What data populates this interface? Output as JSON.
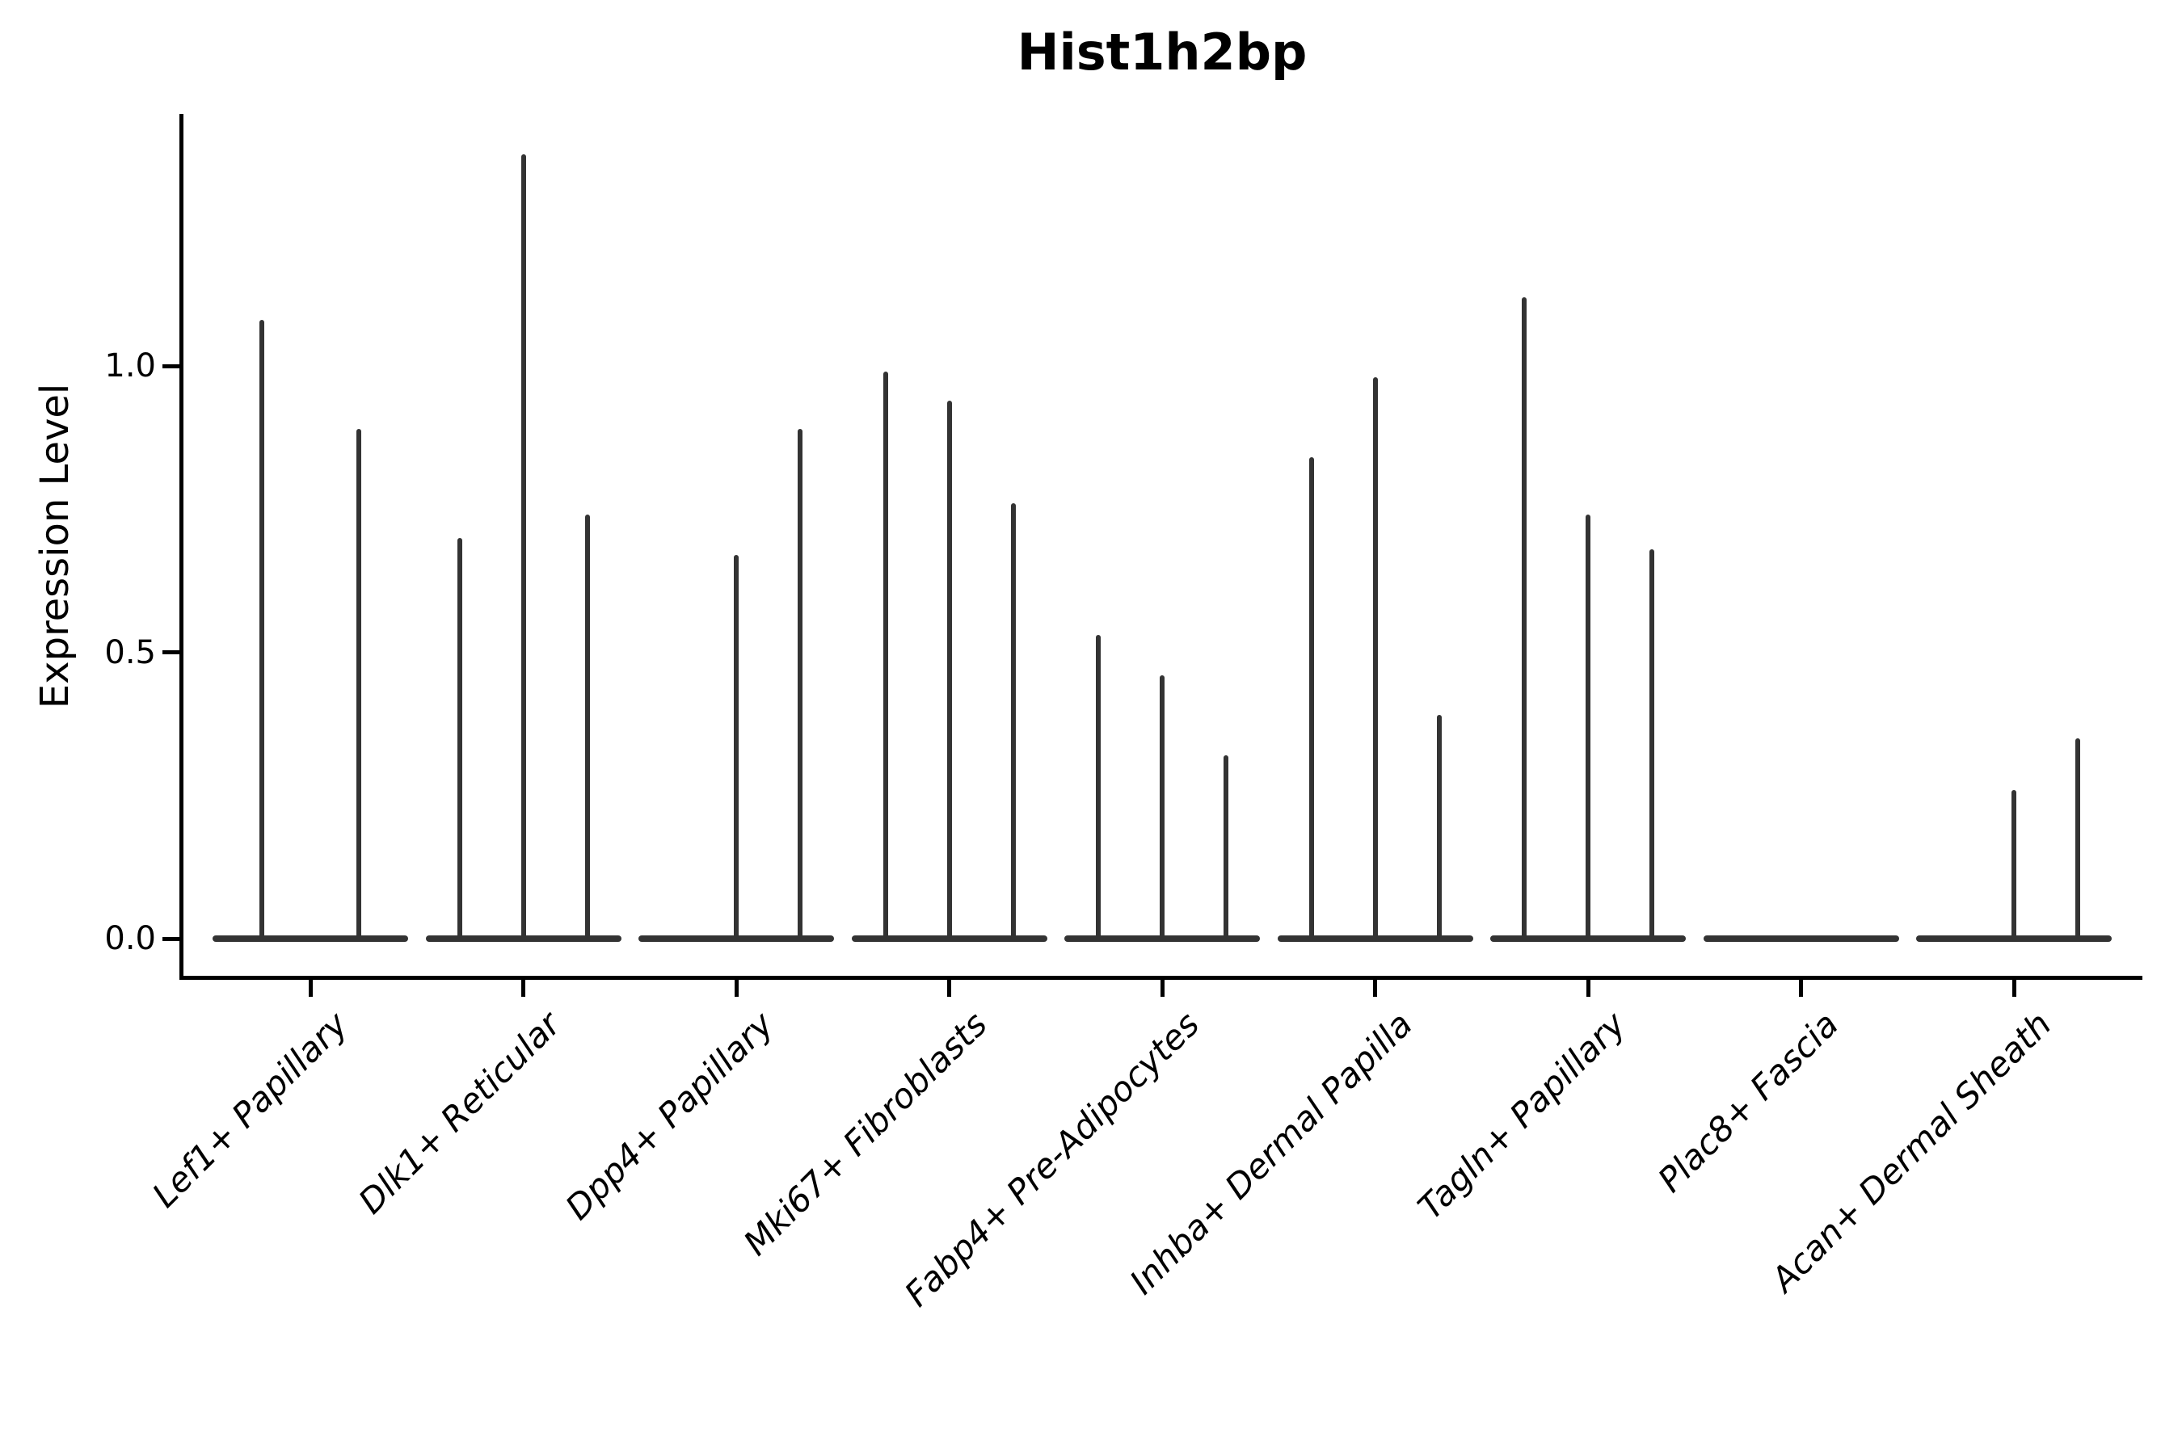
{
  "title": "Hist1h2bp",
  "chart_data": {
    "type": "violin",
    "title": "Hist1h2bp",
    "xlabel": "",
    "ylabel": "Expression Level",
    "ytick_labels": [
      "0.0",
      "0.5",
      "1.0"
    ],
    "ytick_values": [
      0.0,
      0.5,
      1.0
    ],
    "ylim": [
      -0.07,
      1.44
    ],
    "grid": false,
    "legend": "none",
    "violin_color": "#333333",
    "axis_color": "#000000",
    "description": "Sparse single-cell expression violins: each category shows a flat near-zero density base with thin spikes; spike values are the maximum expression level reached by each violin (0 = flat violin with no spike).",
    "categories": [
      "Lef1+ Papillary",
      "Dlk1+ Reticular",
      "Dpp4+ Papillary",
      "Mki67+ Fibroblasts",
      "Fabp4+ Pre-Adipocytes",
      "Inhba+ Dermal Papilla",
      "Tagln+ Papillary",
      "Plac8+ Fascia",
      "Acan+ Dermal Sheath"
    ],
    "groups": [
      {
        "category": "Lef1+ Papillary",
        "spikes": [
          1.08,
          0.89
        ]
      },
      {
        "category": "Dlk1+ Reticular",
        "spikes": [
          0.7,
          1.37,
          0.74
        ]
      },
      {
        "category": "Dpp4+ Papillary",
        "spikes": [
          0,
          0.67,
          0.89
        ]
      },
      {
        "category": "Mki67+ Fibroblasts",
        "spikes": [
          0.99,
          0.94,
          0.76
        ]
      },
      {
        "category": "Fabp4+ Pre-Adipocytes",
        "spikes": [
          0.53,
          0.46,
          0.32
        ]
      },
      {
        "category": "Inhba+ Dermal Papilla",
        "spikes": [
          0.84,
          0.98,
          0.39
        ]
      },
      {
        "category": "Tagln+ Papillary",
        "spikes": [
          1.12,
          0.74,
          0.68
        ]
      },
      {
        "category": "Plac8+ Fascia",
        "spikes": [
          0,
          0,
          0
        ]
      },
      {
        "category": "Acan+ Dermal Sheath",
        "spikes": [
          0,
          0.26,
          0.35
        ]
      }
    ]
  }
}
